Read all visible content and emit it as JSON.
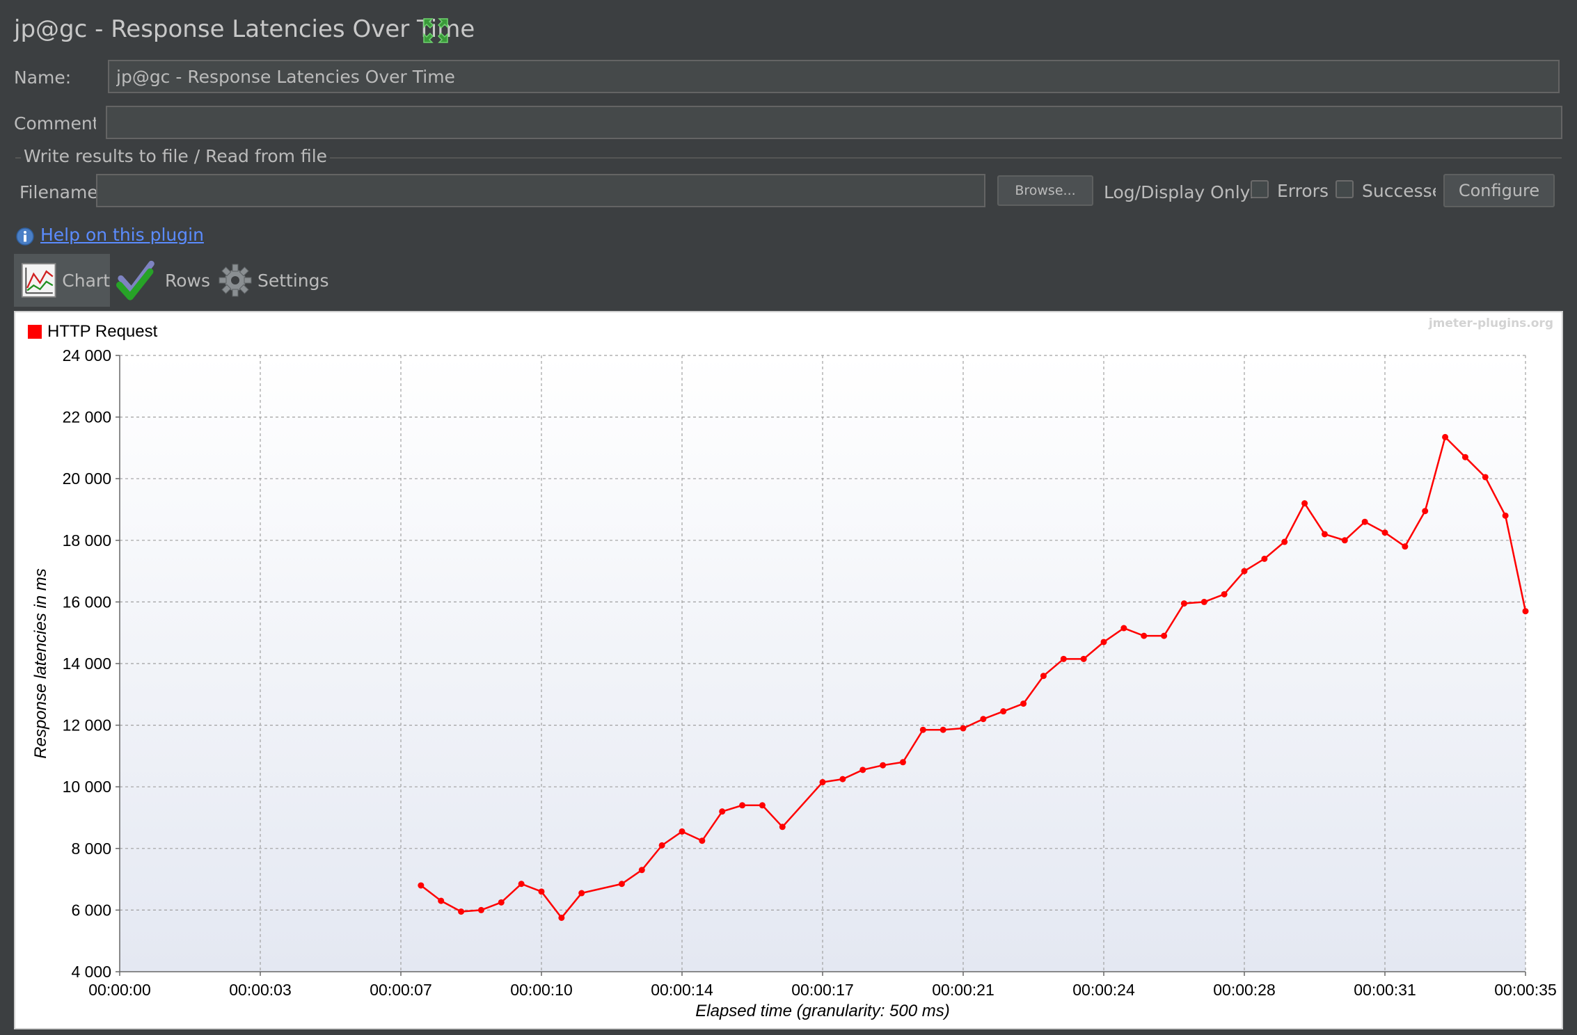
{
  "window": {
    "title": "jp@gc - Response Latencies Over Time"
  },
  "form": {
    "name_label": "Name:",
    "name_value": "jp@gc - Response Latencies Over Time",
    "comments_label": "Comments:",
    "comments_value": "",
    "file_section_label": "Write results to file / Read from file",
    "filename_label": "Filename",
    "filename_value": "",
    "browse_label": "Browse...",
    "log_display_label": "Log/Display Only:",
    "errors_label": "Errors",
    "successes_label": "Successes",
    "configure_label": "Configure"
  },
  "help": {
    "link_text": "Help on this plugin"
  },
  "tabs": [
    {
      "label": "Chart",
      "icon": "chart-icon",
      "active": true
    },
    {
      "label": "Rows",
      "icon": "checkmark-icon",
      "active": false
    },
    {
      "label": "Settings",
      "icon": "gear-icon",
      "active": false
    }
  ],
  "chart": {
    "watermark": "jmeter-plugins.org",
    "series_color": "#ff0000"
  },
  "chart_data": {
    "type": "line",
    "xlabel": "Elapsed time (granularity: 500 ms)",
    "ylabel": "Response latencies in ms",
    "ylim": [
      4000,
      24000
    ],
    "xlim": [
      0,
      35
    ],
    "yticks": [
      "4 000",
      "6 000",
      "8 000",
      "10 000",
      "12 000",
      "14 000",
      "16 000",
      "18 000",
      "20 000",
      "22 000",
      "24 000"
    ],
    "yticks_values": [
      4000,
      6000,
      8000,
      10000,
      12000,
      14000,
      16000,
      18000,
      20000,
      22000,
      24000
    ],
    "xticks": [
      "00:00:00",
      "00:00:03",
      "00:00:07",
      "00:00:10",
      "00:00:14",
      "00:00:17",
      "00:00:21",
      "00:00:24",
      "00:00:28",
      "00:00:31",
      "00:00:35"
    ],
    "xticks_values": [
      0,
      3.5,
      7,
      10.5,
      14,
      17.5,
      21,
      24.5,
      28,
      31.5,
      35
    ],
    "grid": true,
    "legend_position": "top-left",
    "series": [
      {
        "name": "HTTP Request",
        "color": "#ff0000",
        "points": [
          [
            7.5,
            6800
          ],
          [
            8.0,
            6300
          ],
          [
            8.5,
            5950
          ],
          [
            9.0,
            6000
          ],
          [
            9.5,
            6250
          ],
          [
            10.0,
            6850
          ],
          [
            10.5,
            6600
          ],
          [
            11.0,
            5750
          ],
          [
            11.5,
            6550
          ],
          [
            12.5,
            6850
          ],
          [
            13.0,
            7300
          ],
          [
            13.5,
            8100
          ],
          [
            14.0,
            8550
          ],
          [
            14.5,
            8250
          ],
          [
            15.0,
            9200
          ],
          [
            15.5,
            9400
          ],
          [
            16.0,
            9400
          ],
          [
            16.5,
            8700
          ],
          [
            17.5,
            10150
          ],
          [
            18.0,
            10250
          ],
          [
            18.5,
            10550
          ],
          [
            19.0,
            10700
          ],
          [
            19.5,
            10800
          ],
          [
            20.0,
            11850
          ],
          [
            20.5,
            11850
          ],
          [
            21.0,
            11900
          ],
          [
            21.5,
            12200
          ],
          [
            22.0,
            12450
          ],
          [
            22.5,
            12700
          ],
          [
            23.0,
            13600
          ],
          [
            23.5,
            14150
          ],
          [
            24.0,
            14150
          ],
          [
            24.5,
            14700
          ],
          [
            25.0,
            15150
          ],
          [
            25.5,
            14900
          ],
          [
            26.0,
            14900
          ],
          [
            26.5,
            15950
          ],
          [
            27.0,
            16000
          ],
          [
            27.5,
            16250
          ],
          [
            28.0,
            17000
          ],
          [
            28.5,
            17400
          ],
          [
            29.0,
            17950
          ],
          [
            29.5,
            19200
          ],
          [
            30.0,
            18200
          ],
          [
            30.5,
            18000
          ],
          [
            31.0,
            18600
          ],
          [
            31.5,
            18250
          ],
          [
            32.0,
            17800
          ],
          [
            32.5,
            18950
          ],
          [
            33.0,
            21350
          ],
          [
            33.5,
            20700
          ],
          [
            34.0,
            20050
          ],
          [
            34.5,
            18800
          ],
          [
            35.0,
            15700
          ]
        ]
      }
    ]
  }
}
